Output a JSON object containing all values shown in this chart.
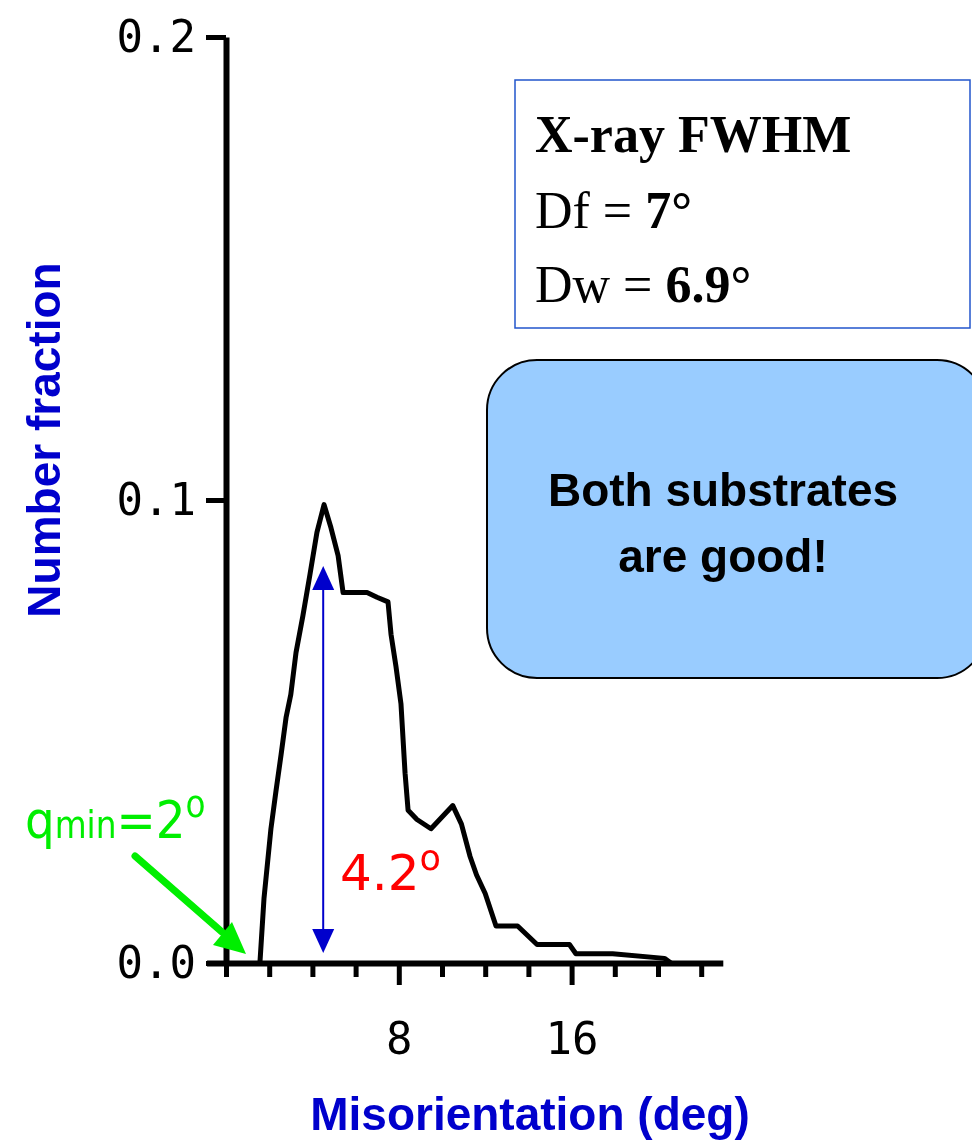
{
  "chart_data": {
    "type": "line",
    "xlabel": "Misorientation (deg)",
    "ylabel": "Number fraction",
    "xlim": [
      -0.9,
      23
    ],
    "ylim": [
      0,
      0.2
    ],
    "xticks": [
      {
        "value": 0,
        "label": null
      },
      {
        "value": 2,
        "label": null
      },
      {
        "value": 4,
        "label": null
      },
      {
        "value": 6,
        "label": null
      },
      8,
      {
        "value": 10,
        "label": null
      },
      {
        "value": 12,
        "label": null
      },
      {
        "value": 14,
        "label": null
      },
      16,
      {
        "value": 18,
        "label": null
      },
      {
        "value": 20,
        "label": null
      },
      {
        "value": 22,
        "label": null
      }
    ],
    "yticks": [
      {
        "value": 0,
        "label": "0.0"
      },
      0.1,
      0.2
    ],
    "series": [
      {
        "color": "#000000",
        "x": [
          1.57,
          1.76,
          2.08,
          2.31,
          2.55,
          2.78,
          3.0,
          3.24,
          3.56,
          3.89,
          4.21,
          4.54,
          4.86,
          5.19,
          5.42,
          6.53,
          6.99,
          7.5,
          7.64,
          7.87,
          8.1,
          8.29,
          8.43,
          8.84,
          9.49,
          10.5,
          10.9,
          11.3,
          11.6,
          12.0,
          12.5,
          13.5,
          14.4,
          15.9,
          16.2,
          17.9,
          20.3,
          20.6
        ],
        "values": [
          0,
          0.014,
          0.029,
          0.037,
          0.045,
          0.053,
          0.058,
          0.067,
          0.075,
          0.084,
          0.093,
          0.099,
          0.094,
          0.088,
          0.08,
          0.08,
          0.079,
          0.078,
          0.071,
          0.064,
          0.056,
          0.041,
          0.033,
          0.031,
          0.029,
          0.034,
          0.03,
          0.023,
          0.019,
          0.015,
          0.008,
          0.008,
          0.004,
          0.004,
          0.002,
          0.002,
          0.001,
          0
        ]
      }
    ],
    "annotations": [
      "X-ray FWHM",
      "Df = 7°",
      "Dw = 6.9°",
      "Both substrates are good!",
      "q$_{min}$=2$^{o}$",
      "4.2$^{o}$"
    ]
  }
}
